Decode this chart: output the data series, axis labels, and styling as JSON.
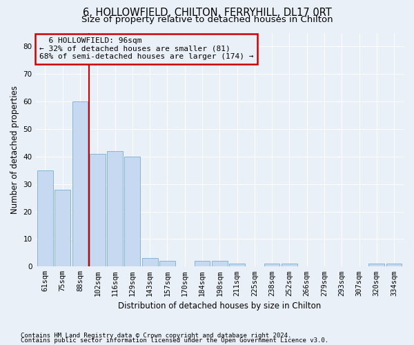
{
  "title_line1": "6, HOLLOWFIELD, CHILTON, FERRYHILL, DL17 0RT",
  "title_line2": "Size of property relative to detached houses in Chilton",
  "xlabel": "Distribution of detached houses by size in Chilton",
  "ylabel": "Number of detached properties",
  "footer_line1": "Contains HM Land Registry data © Crown copyright and database right 2024.",
  "footer_line2": "Contains public sector information licensed under the Open Government Licence v3.0.",
  "annotation_line1": "  6 HOLLOWFIELD: 96sqm",
  "annotation_line2": "← 32% of detached houses are smaller (81)",
  "annotation_line3": "68% of semi-detached houses are larger (174) →",
  "bar_labels": [
    "61sqm",
    "75sqm",
    "88sqm",
    "102sqm",
    "116sqm",
    "129sqm",
    "143sqm",
    "157sqm",
    "170sqm",
    "184sqm",
    "198sqm",
    "211sqm",
    "225sqm",
    "238sqm",
    "252sqm",
    "266sqm",
    "279sqm",
    "293sqm",
    "307sqm",
    "320sqm",
    "334sqm"
  ],
  "bar_values": [
    35,
    28,
    60,
    41,
    42,
    40,
    3,
    2,
    0,
    2,
    2,
    1,
    0,
    1,
    1,
    0,
    0,
    0,
    0,
    1,
    1
  ],
  "bar_color": "#c6d9f0",
  "bar_edge_color": "#7aadcf",
  "vline_color": "#cc0000",
  "annotation_box_edgecolor": "#cc0000",
  "ylim": [
    0,
    85
  ],
  "yticks": [
    0,
    10,
    20,
    30,
    40,
    50,
    60,
    70,
    80
  ],
  "bg_color": "#eaf0f8",
  "grid_color": "#ffffff",
  "title1_fontsize": 10.5,
  "title2_fontsize": 9.5,
  "xlabel_fontsize": 8.5,
  "ylabel_fontsize": 8.5,
  "tick_fontsize": 7.5,
  "annot_fontsize": 8,
  "footer_fontsize": 6.5
}
